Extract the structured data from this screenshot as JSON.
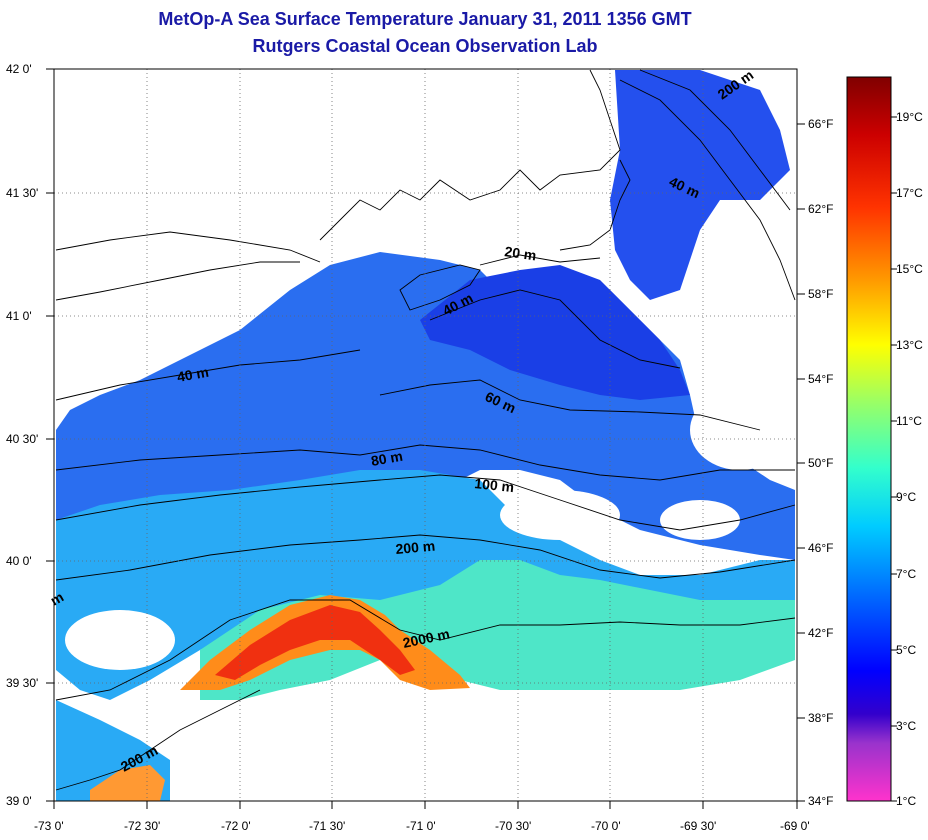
{
  "title": {
    "line1": "MetOp-A Sea Surface Temperature January 31, 2011 1356 GMT",
    "line2": "Rutgers Coastal Ocean Observation Lab"
  },
  "map": {
    "lat_ticks": [
      "42 0'",
      "41 30'",
      "41 0'",
      "40 30'",
      "40 0'",
      "39 30'",
      "39 0'"
    ],
    "lon_ticks": [
      "-73 0'",
      "-72 30'",
      "-72 0'",
      "-71 30'",
      "-71 0'",
      "-70 30'",
      "-70 0'",
      "-69 30'",
      "-69 0'"
    ],
    "fahrenheit_ticks": [
      "66°F",
      "62°F",
      "58°F",
      "54°F",
      "50°F",
      "46°F",
      "42°F",
      "38°F",
      "34°F"
    ],
    "contours": {
      "c200_ne": "200 m",
      "c40_ne": "40 m",
      "c20": "20 m",
      "c40_mid": "40 m",
      "c40_w": "40 m",
      "c60": "60 m",
      "c80": "80 m",
      "c100": "100 m",
      "c200_mid": "200 m",
      "c2000": "2000 m",
      "c200_sw": "200 m",
      "cm_edge": "m"
    }
  },
  "colorbar": {
    "celsius_ticks": [
      "19°C",
      "17°C",
      "15°C",
      "13°C",
      "11°C",
      "9°C",
      "7°C",
      "5°C",
      "3°C",
      "1°C"
    ]
  }
}
